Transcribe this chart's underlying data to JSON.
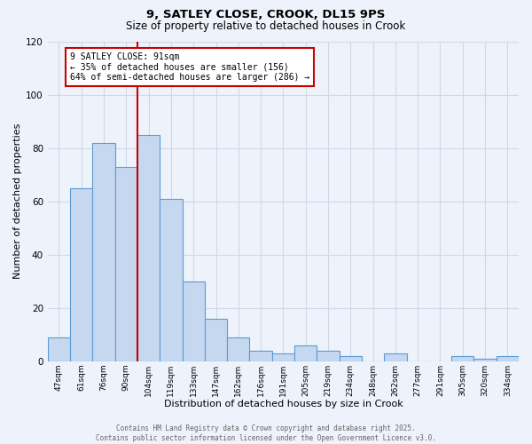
{
  "title_line1": "9, SATLEY CLOSE, CROOK, DL15 9PS",
  "title_line2": "Size of property relative to detached houses in Crook",
  "xlabel": "Distribution of detached houses by size in Crook",
  "ylabel": "Number of detached properties",
  "categories": [
    "47sqm",
    "61sqm",
    "76sqm",
    "90sqm",
    "104sqm",
    "119sqm",
    "133sqm",
    "147sqm",
    "162sqm",
    "176sqm",
    "191sqm",
    "205sqm",
    "219sqm",
    "234sqm",
    "248sqm",
    "262sqm",
    "277sqm",
    "291sqm",
    "305sqm",
    "320sqm",
    "334sqm"
  ],
  "values": [
    9,
    65,
    82,
    73,
    85,
    61,
    30,
    16,
    9,
    4,
    3,
    6,
    4,
    2,
    0,
    3,
    0,
    0,
    2,
    1,
    2
  ],
  "bar_color": "#c5d8f0",
  "bar_edge_color": "#5b9bd5",
  "highlight_line_color": "#cc0000",
  "annotation_text": "9 SATLEY CLOSE: 91sqm\n← 35% of detached houses are smaller (156)\n64% of semi-detached houses are larger (286) →",
  "annotation_box_color": "#ffffff",
  "annotation_box_edge": "#cc0000",
  "ylim": [
    0,
    120
  ],
  "yticks": [
    0,
    20,
    40,
    60,
    80,
    100,
    120
  ],
  "grid_color": "#d0d8e8",
  "background_color": "#eef2fa",
  "footer": "Contains HM Land Registry data © Crown copyright and database right 2025.\nContains public sector information licensed under the Open Government Licence v3.0."
}
